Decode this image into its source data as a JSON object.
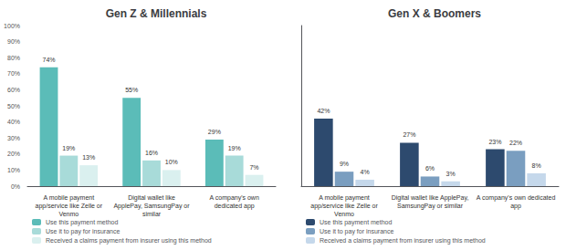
{
  "chart_data": [
    {
      "type": "bar",
      "title": "Gen Z & Millennials",
      "categories": [
        "A mobile payment\napp/service like Zelle or\nVenmo",
        "Digital wallet like\nApplePay, SamsungPay or\nsimilar",
        "A company's own\ndedicated app"
      ],
      "series": [
        {
          "name": "Use this payment method",
          "color": "#5bbcb8",
          "values": [
            74,
            55,
            29
          ],
          "value_labels": [
            "74%",
            "55%",
            "29%"
          ]
        },
        {
          "name": "Use it to pay for insurance",
          "color": "#a8dbd9",
          "values": [
            19,
            16,
            19
          ],
          "value_labels": [
            "19%",
            "16%",
            "19%"
          ]
        },
        {
          "name": "Received a claims payment from insurer using this method",
          "color": "#daf0ef",
          "values": [
            13,
            10,
            7
          ],
          "value_labels": [
            "13%",
            "10%",
            "7%"
          ]
        }
      ],
      "ylim": [
        0,
        100
      ],
      "yticks": [
        {
          "value": 0,
          "label": "0%"
        },
        {
          "value": 10,
          "label": "10%"
        },
        {
          "value": 20,
          "label": "20%"
        },
        {
          "value": 30,
          "label": "30%"
        },
        {
          "value": 40,
          "label": "40%"
        },
        {
          "value": 50,
          "label": "50%"
        },
        {
          "value": 60,
          "label": "60%"
        },
        {
          "value": 70,
          "label": "70%"
        },
        {
          "value": 80,
          "label": "80%"
        },
        {
          "value": 90,
          "label": "90%"
        },
        {
          "value": 100,
          "label": "100%"
        }
      ],
      "grid": false,
      "legend": "lower left",
      "data_labels": true
    },
    {
      "type": "bar",
      "title": "Gen X & Boomers",
      "categories": [
        "A mobile payment\napp/service like Zelle or\nVenmo",
        "Digital wallet like ApplePay,\nSamsungPay or similar",
        "A company's own dedicated\napp"
      ],
      "series": [
        {
          "name": "Use this payment method",
          "color": "#2d4a6e",
          "values": [
            42,
            27,
            23
          ],
          "value_labels": [
            "42%",
            "27%",
            "23%"
          ]
        },
        {
          "name": "Use it to pay for insurance",
          "color": "#7a9ec0",
          "values": [
            9,
            6,
            22
          ],
          "value_labels": [
            "9%",
            "6%",
            "22%"
          ]
        },
        {
          "name": "Received a claims payment from insurer using this method",
          "color": "#c5d8eb",
          "values": [
            4,
            3,
            8
          ],
          "value_labels": [
            "4%",
            "3%",
            "8%"
          ]
        }
      ],
      "ylim": [
        0,
        100
      ],
      "grid": false,
      "legend": "lower left",
      "data_labels": true,
      "tick_labels": "x"
    }
  ]
}
